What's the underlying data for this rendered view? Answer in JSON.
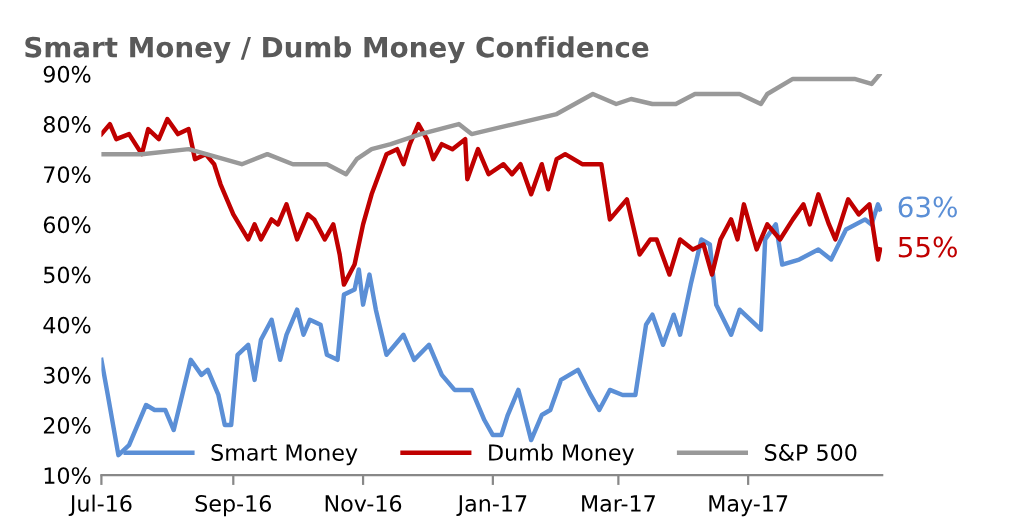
{
  "chart_data": {
    "type": "line",
    "title": "Smart Money / Dumb Money Confidence",
    "ylim": [
      10,
      90
    ],
    "yticks": [
      {
        "value": 10,
        "label": "10%"
      },
      {
        "value": 20,
        "label": "20%"
      },
      {
        "value": 30,
        "label": "30%"
      },
      {
        "value": 40,
        "label": "40%"
      },
      {
        "value": 50,
        "label": "50%"
      },
      {
        "value": 60,
        "label": "60%"
      },
      {
        "value": 70,
        "label": "70%"
      },
      {
        "value": 80,
        "label": "80%"
      },
      {
        "value": 90,
        "label": "90%"
      }
    ],
    "xlim": [
      "2016-07-01",
      "2017-07-03"
    ],
    "xticks": [
      {
        "value": "2016-07-01",
        "label": "Jul-16"
      },
      {
        "value": "2016-09-01",
        "label": "Sep-16"
      },
      {
        "value": "2016-11-01",
        "label": "Nov-16"
      },
      {
        "value": "2017-01-01",
        "label": "Jan-17"
      },
      {
        "value": "2017-03-01",
        "label": "Mar-17"
      },
      {
        "value": "2017-05-01",
        "label": "May-17"
      }
    ],
    "grid": false,
    "legend": "bottom",
    "marker": "none",
    "line_style": "solid",
    "annotations": [
      {
        "text": "63%",
        "x": "2017-07-02",
        "y": 63
      },
      {
        "text": "55%",
        "x": "2017-07-02",
        "y": 55
      }
    ],
    "series": [
      {
        "name": "Smart Money",
        "color": "#5b8fd6",
        "x": [
          "2016-07-01",
          "2016-07-04",
          "2016-07-09",
          "2016-07-14",
          "2016-07-22",
          "2016-07-26",
          "2016-07-31",
          "2016-08-04",
          "2016-08-12",
          "2016-08-17",
          "2016-08-20",
          "2016-08-25",
          "2016-08-28",
          "2016-08-31",
          "2016-09-03",
          "2016-09-08",
          "2016-09-11",
          "2016-09-14",
          "2016-09-19",
          "2016-09-23",
          "2016-09-26",
          "2016-10-01",
          "2016-10-04",
          "2016-10-07",
          "2016-10-12",
          "2016-10-15",
          "2016-10-20",
          "2016-10-23",
          "2016-10-28",
          "2016-10-30",
          "2016-11-01",
          "2016-11-04",
          "2016-11-07",
          "2016-11-12",
          "2016-11-20",
          "2016-11-25",
          "2016-12-02",
          "2016-12-08",
          "2016-12-14",
          "2016-12-22",
          "2016-12-28",
          "2017-01-01",
          "2017-01-05",
          "2017-01-08",
          "2017-01-13",
          "2017-01-19",
          "2017-01-24",
          "2017-01-28",
          "2017-02-02",
          "2017-02-10",
          "2017-02-16",
          "2017-02-20",
          "2017-02-25",
          "2017-03-03",
          "2017-03-09",
          "2017-03-14",
          "2017-03-17",
          "2017-03-22",
          "2017-03-27",
          "2017-03-30",
          "2017-04-04",
          "2017-04-09",
          "2017-04-13",
          "2017-04-16",
          "2017-04-23",
          "2017-04-27",
          "2017-05-02",
          "2017-05-07",
          "2017-05-09",
          "2017-05-14",
          "2017-05-17",
          "2017-05-25",
          "2017-06-03",
          "2017-06-09",
          "2017-06-16",
          "2017-06-25",
          "2017-06-28",
          "2017-07-01",
          "2017-07-02"
        ],
        "values": [
          33,
          26,
          14,
          16,
          24,
          23,
          23,
          19,
          33,
          30,
          31,
          26,
          20,
          20,
          34,
          36,
          29,
          37,
          41,
          33,
          38,
          43,
          38,
          41,
          40,
          34,
          33,
          46,
          47,
          51,
          44,
          50,
          43,
          34,
          38,
          33,
          36,
          30,
          27,
          27,
          21,
          18,
          18,
          22,
          27,
          17,
          22,
          23,
          29,
          31,
          26,
          23,
          27,
          26,
          26,
          40,
          42,
          36,
          42,
          38,
          48,
          57,
          56,
          44,
          38,
          43,
          41,
          39,
          57,
          60,
          52,
          53,
          55,
          53,
          59,
          61,
          60,
          64,
          63
        ]
      },
      {
        "name": "Dumb Money",
        "color": "#c00000",
        "x": [
          "2016-07-01",
          "2016-07-05",
          "2016-07-08",
          "2016-07-14",
          "2016-07-20",
          "2016-07-23",
          "2016-07-28",
          "2016-08-01",
          "2016-08-06",
          "2016-08-11",
          "2016-08-14",
          "2016-08-19",
          "2016-08-23",
          "2016-08-26",
          "2016-09-01",
          "2016-09-08",
          "2016-09-11",
          "2016-09-14",
          "2016-09-19",
          "2016-09-22",
          "2016-09-26",
          "2016-10-01",
          "2016-10-06",
          "2016-10-09",
          "2016-10-14",
          "2016-10-18",
          "2016-10-21",
          "2016-10-23",
          "2016-10-28",
          "2016-11-01",
          "2016-11-05",
          "2016-11-12",
          "2016-11-17",
          "2016-11-20",
          "2016-11-23",
          "2016-11-27",
          "2016-12-01",
          "2016-12-04",
          "2016-12-08",
          "2016-12-13",
          "2016-12-19",
          "2016-12-20",
          "2016-12-25",
          "2016-12-30",
          "2017-01-06",
          "2017-01-10",
          "2017-01-14",
          "2017-01-19",
          "2017-01-24",
          "2017-01-27",
          "2017-01-31",
          "2017-02-04",
          "2017-02-12",
          "2017-02-18",
          "2017-02-21",
          "2017-02-25",
          "2017-03-05",
          "2017-03-11",
          "2017-03-16",
          "2017-03-19",
          "2017-03-25",
          "2017-03-30",
          "2017-04-05",
          "2017-04-10",
          "2017-04-14",
          "2017-04-18",
          "2017-04-23",
          "2017-04-26",
          "2017-04-29",
          "2017-05-05",
          "2017-05-10",
          "2017-05-16",
          "2017-05-22",
          "2017-05-27",
          "2017-05-30",
          "2017-06-03",
          "2017-06-08",
          "2017-06-11",
          "2017-06-17",
          "2017-06-22",
          "2017-06-27",
          "2017-07-01",
          "2017-07-02"
        ],
        "values": [
          78,
          80,
          77,
          78,
          74,
          79,
          77,
          81,
          78,
          79,
          73,
          74,
          72,
          68,
          62,
          57,
          60,
          57,
          61,
          60,
          64,
          57,
          62,
          61,
          57,
          60,
          54,
          48,
          52,
          60,
          66,
          74,
          75,
          72,
          76,
          80,
          77,
          73,
          76,
          75,
          77,
          69,
          75,
          70,
          72,
          70,
          72,
          66,
          72,
          67,
          73,
          74,
          72,
          72,
          72,
          61,
          65,
          54,
          57,
          57,
          50,
          57,
          55,
          56,
          50,
          57,
          61,
          57,
          64,
          55,
          60,
          57,
          61,
          64,
          60,
          66,
          60,
          57,
          65,
          62,
          64,
          53,
          55
        ]
      },
      {
        "name": "S&P 500",
        "color": "#999999",
        "x": [
          "2016-07-01",
          "2016-07-20",
          "2016-08-11",
          "2016-09-05",
          "2016-09-17",
          "2016-09-29",
          "2016-10-15",
          "2016-10-24",
          "2016-10-29",
          "2016-11-05",
          "2016-11-14",
          "2016-11-28",
          "2016-12-16",
          "2016-12-22",
          "2017-01-11",
          "2017-01-31",
          "2017-02-17",
          "2017-02-28",
          "2017-03-07",
          "2017-03-17",
          "2017-03-28",
          "2017-04-06",
          "2017-04-27",
          "2017-05-07",
          "2017-05-10",
          "2017-05-22",
          "2017-06-05",
          "2017-06-20",
          "2017-06-28",
          "2017-07-02"
        ],
        "values": [
          74,
          74,
          75,
          72,
          74,
          72,
          72,
          70,
          73,
          75,
          76,
          78,
          80,
          78,
          80,
          82,
          86,
          84,
          85,
          84,
          84,
          86,
          86,
          84,
          86,
          89,
          89,
          89,
          88,
          90
        ]
      }
    ]
  }
}
